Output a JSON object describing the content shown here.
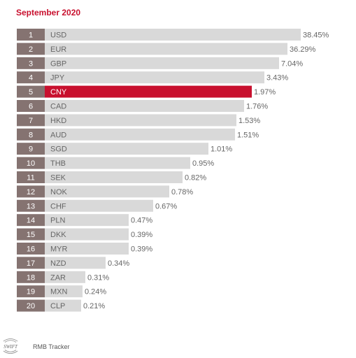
{
  "header": {
    "title": "September 2020"
  },
  "footer": {
    "logo_text": "SWIFT",
    "source": "RMB Tracker"
  },
  "colors": {
    "rank_box": "#857371",
    "bar": "#d9d9d9",
    "highlight": "#c8102e",
    "label_text": "#666666",
    "highlight_text": "#ffffff",
    "title": "#c8102e"
  },
  "chart_data": {
    "type": "bar",
    "orientation": "horizontal",
    "title": "September 2020",
    "highlight": "CNY",
    "ranks": [
      "1",
      "2",
      "3",
      "4",
      "5",
      "6",
      "7",
      "8",
      "9",
      "10",
      "11",
      "12",
      "13",
      "14",
      "15",
      "16",
      "17",
      "18",
      "19",
      "20"
    ],
    "categories": [
      "USD",
      "EUR",
      "GBP",
      "JPY",
      "CNY",
      "CAD",
      "HKD",
      "AUD",
      "SGD",
      "THB",
      "SEK",
      "NOK",
      "CHF",
      "PLN",
      "DKK",
      "MYR",
      "NZD",
      "ZAR",
      "MXN",
      "CLP"
    ],
    "value_labels": [
      "38.45%",
      "36.29%",
      "7.04%",
      "3.43%",
      "1.97%",
      "1.76%",
      "1.53%",
      "1.51%",
      "1.01%",
      "0.95%",
      "0.82%",
      "0.78%",
      "0.67%",
      "0.47%",
      "0.39%",
      "0.39%",
      "0.34%",
      "0.31%",
      "0.24%",
      "0.21%"
    ],
    "values": [
      38.45,
      36.29,
      7.04,
      3.43,
      1.97,
      1.76,
      1.53,
      1.51,
      1.01,
      0.95,
      0.82,
      0.78,
      0.67,
      0.47,
      0.39,
      0.39,
      0.34,
      0.31,
      0.24,
      0.21
    ]
  }
}
